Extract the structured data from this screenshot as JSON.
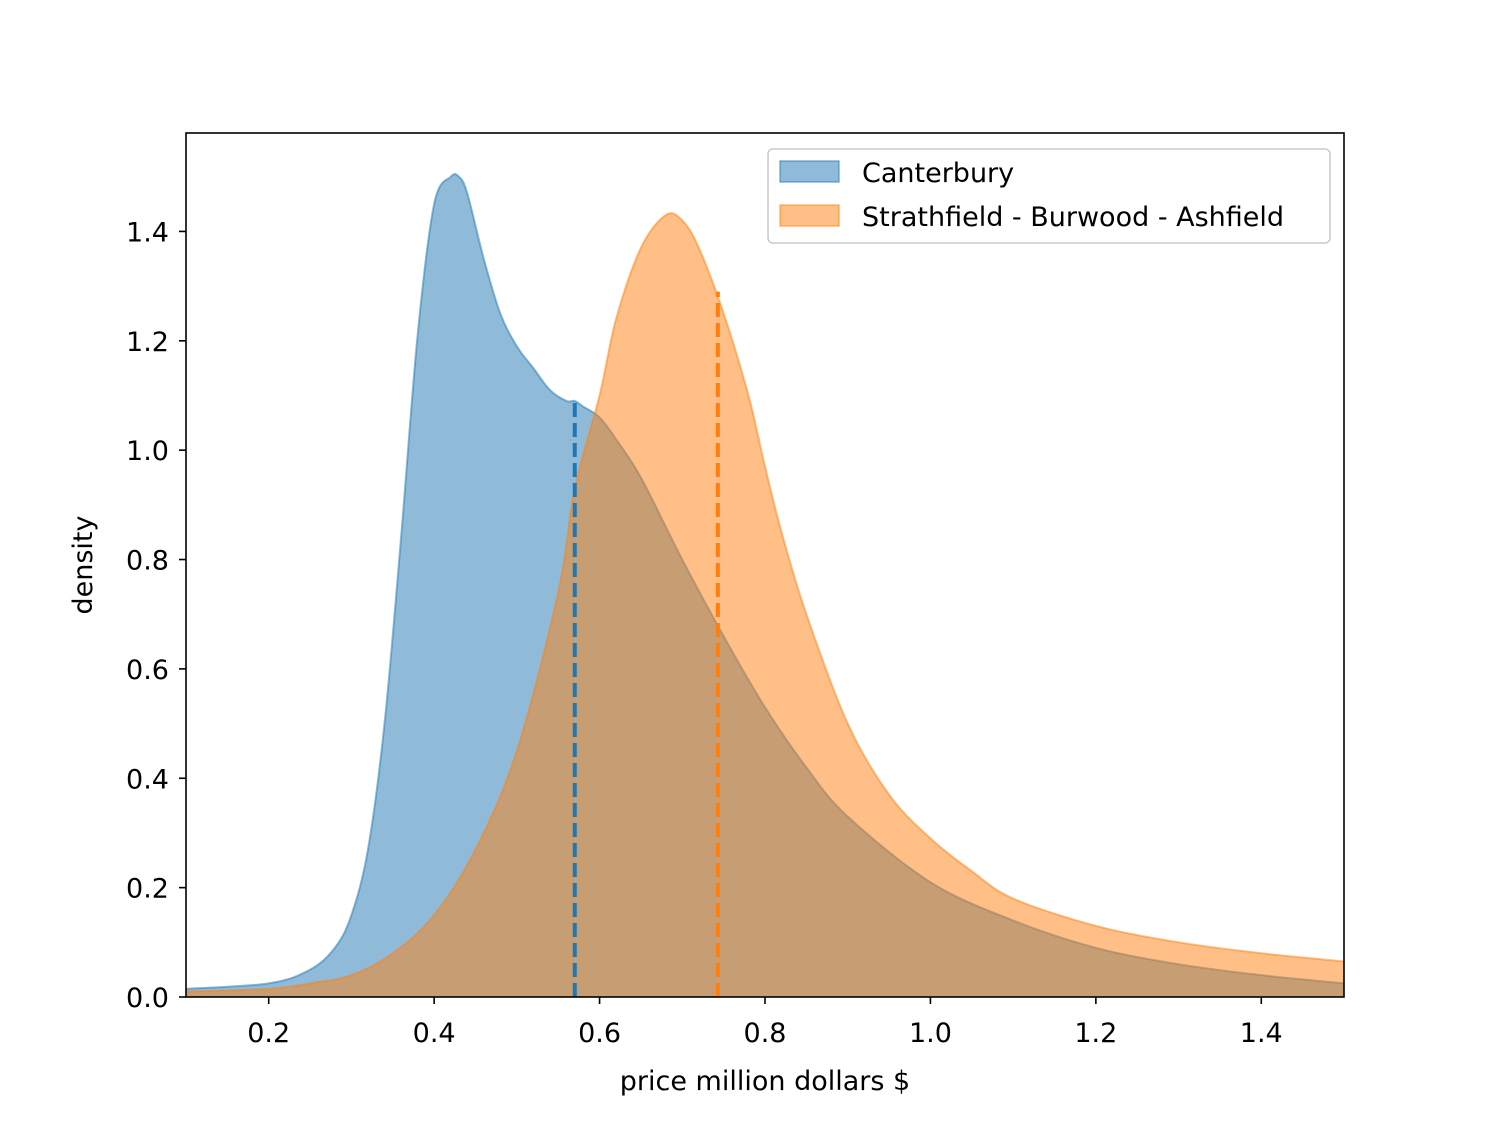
{
  "chart_data": {
    "type": "area",
    "title": "",
    "xlabel": "price million dollars $",
    "ylabel": "density",
    "xlim": [
      0.1,
      1.5
    ],
    "ylim": [
      0.0,
      1.58
    ],
    "xticks": [
      0.2,
      0.4,
      0.6,
      0.8,
      1.0,
      1.2,
      1.4
    ],
    "xtick_labels": [
      "0.2",
      "0.4",
      "0.6",
      "0.8",
      "1.0",
      "1.2",
      "1.4"
    ],
    "yticks": [
      0.0,
      0.2,
      0.4,
      0.6,
      0.8,
      1.0,
      1.2,
      1.4
    ],
    "ytick_labels": [
      "0.0",
      "0.2",
      "0.4",
      "0.6",
      "0.8",
      "1.0",
      "1.2",
      "1.4"
    ],
    "legend_position": "top-right",
    "series": [
      {
        "name": "Canterbury",
        "color": "#1f77b4",
        "fill": "#1f77b4",
        "fill_opacity": 0.5,
        "median_line_x": 0.57,
        "median_line_y": 1.09,
        "x": [
          0.1,
          0.2,
          0.25,
          0.28,
          0.3,
          0.32,
          0.34,
          0.36,
          0.38,
          0.4,
          0.42,
          0.43,
          0.44,
          0.46,
          0.48,
          0.5,
          0.52,
          0.54,
          0.56,
          0.57,
          0.58,
          0.6,
          0.62,
          0.65,
          0.7,
          0.75,
          0.8,
          0.85,
          0.9,
          1.0,
          1.1,
          1.2,
          1.3,
          1.4,
          1.5
        ],
        "y": [
          0.015,
          0.025,
          0.05,
          0.09,
          0.15,
          0.27,
          0.5,
          0.84,
          1.21,
          1.45,
          1.5,
          1.5,
          1.47,
          1.35,
          1.25,
          1.19,
          1.15,
          1.11,
          1.09,
          1.09,
          1.08,
          1.06,
          1.02,
          0.95,
          0.8,
          0.66,
          0.53,
          0.42,
          0.33,
          0.21,
          0.14,
          0.09,
          0.06,
          0.04,
          0.025
        ]
      },
      {
        "name": "Strathfield - Burwood - Ashfield",
        "color": "#ff7f0e",
        "fill": "#ff7f0e",
        "fill_opacity": 0.5,
        "median_line_x": 0.743,
        "median_line_y": 1.29,
        "x": [
          0.1,
          0.2,
          0.25,
          0.3,
          0.35,
          0.4,
          0.45,
          0.5,
          0.55,
          0.57,
          0.6,
          0.62,
          0.65,
          0.68,
          0.7,
          0.72,
          0.75,
          0.78,
          0.8,
          0.82,
          0.85,
          0.9,
          0.95,
          1.0,
          1.05,
          1.1,
          1.2,
          1.3,
          1.4,
          1.5
        ],
        "y": [
          0.01,
          0.015,
          0.025,
          0.04,
          0.08,
          0.15,
          0.27,
          0.45,
          0.74,
          0.93,
          1.1,
          1.24,
          1.37,
          1.43,
          1.42,
          1.37,
          1.25,
          1.1,
          0.97,
          0.85,
          0.7,
          0.5,
          0.37,
          0.29,
          0.23,
          0.18,
          0.13,
          0.1,
          0.08,
          0.065
        ]
      }
    ]
  }
}
